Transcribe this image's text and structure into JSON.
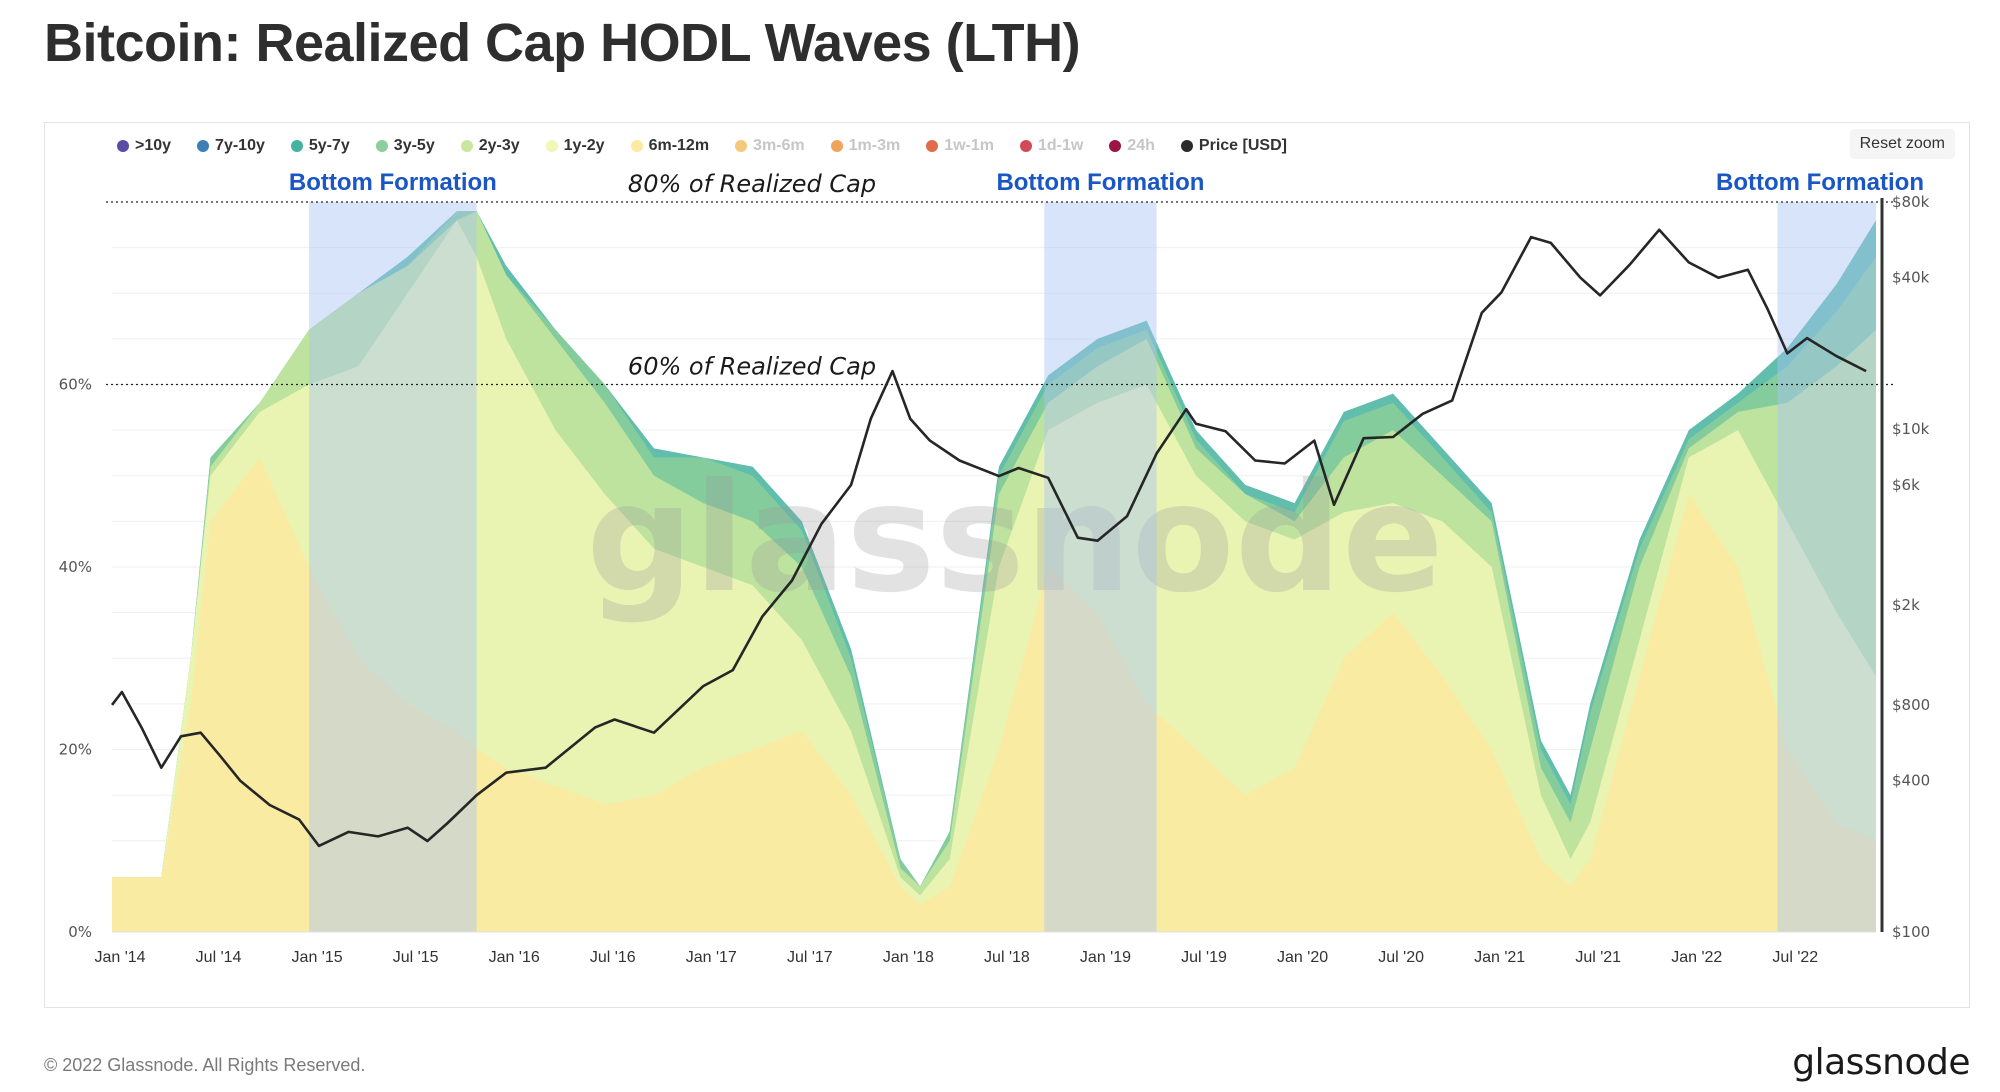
{
  "header": {
    "title": "Bitcoin: Realized Cap HODL Waves (LTH)"
  },
  "toolbar": {
    "reset_zoom_label": "Reset zoom"
  },
  "footer": {
    "copyright": "© 2022 Glassnode. All Rights Reserved.",
    "logo": "glassnode"
  },
  "watermark": "glassnode",
  "chart_data": {
    "type": "area",
    "title": "Bitcoin: Realized Cap HODL Waves (LTH)",
    "xlabel": "",
    "ylabel_left": "",
    "ylabel_right": "",
    "x_ticks": [
      "Jan '14",
      "Jul '14",
      "Jan '15",
      "Jul '15",
      "Jan '16",
      "Jul '16",
      "Jan '17",
      "Jul '17",
      "Jan '18",
      "Jul '18",
      "Jan '19",
      "Jul '19",
      "Jan '20",
      "Jul '20",
      "Jan '21",
      "Jul '21",
      "Jan '22",
      "Jul '22"
    ],
    "x_range": [
      2014.0,
      2022.95
    ],
    "y_left": {
      "ticks": [
        "0%",
        "20%",
        "40%",
        "60%"
      ],
      "range": [
        0,
        80
      ],
      "unit": "%"
    },
    "y_right": {
      "scale": "log",
      "ticks": [
        "$100",
        "$400",
        "$800",
        "$2k",
        "$6k",
        "$10k",
        "$40k",
        "$80k"
      ],
      "range": [
        100,
        80000
      ]
    },
    "grid": true,
    "legend_position": "top-left",
    "legend": [
      {
        "name": ">10y",
        "color": "#5b4aa6",
        "visible": true
      },
      {
        "name": "7y-10y",
        "color": "#3b7fb6",
        "visible": true
      },
      {
        "name": "5y-7y",
        "color": "#45b39d",
        "visible": true
      },
      {
        "name": "3y-5y",
        "color": "#8ccf9a",
        "visible": true
      },
      {
        "name": "2y-3y",
        "color": "#c8e6a0",
        "visible": true
      },
      {
        "name": "1y-2y",
        "color": "#f1f7b5",
        "visible": true
      },
      {
        "name": "6m-12m",
        "color": "#fde9a0",
        "visible": true
      },
      {
        "name": "3m-6m",
        "color": "#f6c97a",
        "visible": false
      },
      {
        "name": "1m-3m",
        "color": "#f0a35a",
        "visible": false
      },
      {
        "name": "1w-1m",
        "color": "#e06c4a",
        "visible": false
      },
      {
        "name": "1d-1w",
        "color": "#d24a55",
        "visible": false
      },
      {
        "name": "24h",
        "color": "#9c1445",
        "visible": false
      },
      {
        "name": "Price [USD]",
        "color": "#2b2b2b",
        "visible": true
      }
    ],
    "annotations": {
      "lines": [
        {
          "label": "80% of Realized Cap",
          "value": 80
        },
        {
          "label": "60% of Realized Cap",
          "value": 60
        }
      ],
      "bands": [
        {
          "label": "Bottom Formation",
          "from": 2015.0,
          "to": 2015.85
        },
        {
          "label": "Bottom Formation",
          "from": 2018.73,
          "to": 2019.3
        },
        {
          "label": "Bottom Formation",
          "from": 2022.45,
          "to": 2022.95
        }
      ],
      "band_color": "#1a56c4"
    },
    "x": [
      2014.0,
      2014.25,
      2014.4,
      2014.5,
      2014.75,
      2015.0,
      2015.25,
      2015.5,
      2015.75,
      2015.85,
      2016.0,
      2016.25,
      2016.5,
      2016.75,
      2017.0,
      2017.25,
      2017.5,
      2017.75,
      2018.0,
      2018.1,
      2018.25,
      2018.5,
      2018.75,
      2019.0,
      2019.25,
      2019.5,
      2019.75,
      2020.0,
      2020.25,
      2020.5,
      2020.75,
      2021.0,
      2021.25,
      2021.4,
      2021.5,
      2021.75,
      2022.0,
      2022.25,
      2022.5,
      2022.75,
      2022.95
    ],
    "series": [
      {
        "name": "6m-12m",
        "values": [
          6,
          6,
          25,
          45,
          52,
          40,
          30,
          25,
          22,
          20,
          18,
          16,
          14,
          15,
          18,
          20,
          22,
          15,
          5,
          3,
          5,
          20,
          40,
          35,
          25,
          20,
          15,
          18,
          30,
          35,
          28,
          20,
          8,
          5,
          8,
          28,
          48,
          40,
          20,
          12,
          10
        ]
      },
      {
        "name": "1y-2y",
        "values": [
          6,
          6,
          30,
          50,
          57,
          60,
          62,
          70,
          78,
          74,
          65,
          55,
          48,
          42,
          40,
          38,
          32,
          22,
          6,
          4,
          8,
          40,
          55,
          58,
          60,
          50,
          45,
          43,
          46,
          47,
          45,
          40,
          15,
          8,
          12,
          32,
          52,
          55,
          45,
          35,
          28
        ]
      },
      {
        "name": "2y-3y",
        "values": [
          6,
          6,
          30,
          51,
          58,
          66,
          70,
          73,
          78,
          79,
          72,
          65,
          58,
          50,
          47,
          45,
          40,
          28,
          7,
          5,
          10,
          48,
          58,
          62,
          65,
          53,
          48,
          45,
          52,
          55,
          50,
          45,
          18,
          12,
          20,
          40,
          53,
          57,
          58,
          62,
          66
        ]
      },
      {
        "name": "3y-5y",
        "values": [
          6,
          6,
          30,
          52,
          58,
          66,
          70,
          73,
          79,
          79,
          72,
          66,
          60,
          52,
          52,
          50,
          44,
          30,
          8,
          5,
          11,
          50,
          60,
          64,
          66,
          54,
          48,
          46,
          56,
          58,
          52,
          46,
          20,
          14,
          24,
          42,
          54,
          58,
          62,
          68,
          74
        ]
      },
      {
        "name": "5y-7y",
        "values": [
          6,
          6,
          30,
          52,
          58,
          66,
          70,
          74,
          79,
          79,
          73,
          66,
          60,
          53,
          52,
          51,
          45,
          31,
          8,
          5,
          11,
          51,
          61,
          65,
          67,
          55,
          49,
          47,
          57,
          59,
          53,
          47,
          21,
          15,
          25,
          43,
          55,
          59,
          64,
          71,
          78
        ]
      }
    ],
    "price_series": {
      "name": "Price [USD]",
      "x": [
        2014.0,
        2014.05,
        2014.15,
        2014.25,
        2014.35,
        2014.45,
        2014.55,
        2014.65,
        2014.8,
        2014.95,
        2015.05,
        2015.2,
        2015.35,
        2015.5,
        2015.6,
        2015.7,
        2015.85,
        2016.0,
        2016.2,
        2016.45,
        2016.55,
        2016.75,
        2017.0,
        2017.15,
        2017.3,
        2017.45,
        2017.6,
        2017.75,
        2017.85,
        2017.96,
        2018.05,
        2018.15,
        2018.3,
        2018.5,
        2018.6,
        2018.75,
        2018.9,
        2019.0,
        2019.15,
        2019.3,
        2019.45,
        2019.5,
        2019.65,
        2019.8,
        2019.95,
        2020.1,
        2020.2,
        2020.35,
        2020.5,
        2020.65,
        2020.8,
        2020.95,
        2021.05,
        2021.2,
        2021.3,
        2021.45,
        2021.55,
        2021.7,
        2021.85,
        2022.0,
        2022.15,
        2022.3,
        2022.4,
        2022.5,
        2022.6,
        2022.75,
        2022.9
      ],
      "values": [
        800,
        900,
        650,
        450,
        600,
        620,
        500,
        400,
        320,
        280,
        220,
        250,
        240,
        260,
        230,
        270,
        350,
        430,
        450,
        650,
        700,
        620,
        950,
        1100,
        1800,
        2500,
        4200,
        6000,
        11000,
        17000,
        11000,
        9000,
        7500,
        6500,
        7000,
        6400,
        3700,
        3600,
        4500,
        8000,
        12000,
        10500,
        9800,
        7500,
        7300,
        9000,
        5000,
        9200,
        9300,
        11500,
        13000,
        29000,
        35000,
        58000,
        55000,
        40000,
        34000,
        45000,
        62000,
        46000,
        40000,
        43000,
        30000,
        20000,
        23000,
        19500,
        17000
      ]
    }
  }
}
